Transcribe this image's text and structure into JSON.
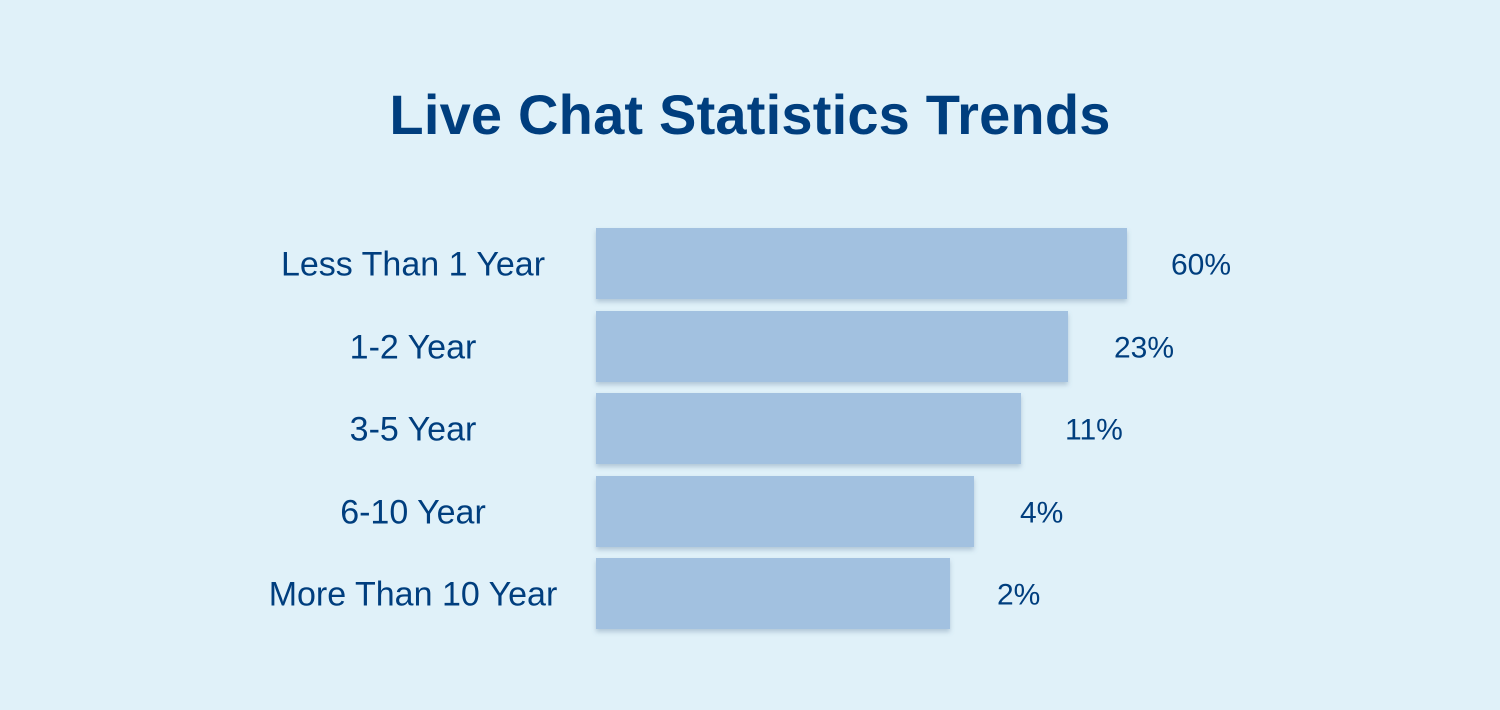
{
  "colors": {
    "background": "#e0f1f9",
    "bar": "#a2c1e0",
    "text": "#003e7e"
  },
  "chart_data": {
    "type": "bar",
    "orientation": "horizontal",
    "title": "Live Chat Statistics Trends",
    "categories": [
      "Less Than 1 Year",
      "1-2 Year",
      "3-5 Year",
      "6-10 Year",
      "More Than 10 Year"
    ],
    "values": [
      60,
      23,
      11,
      4,
      2
    ],
    "value_labels": [
      "60%",
      "23%",
      "11%",
      "4%",
      "2%"
    ],
    "unit": "%",
    "grid": false,
    "legend": "none"
  }
}
